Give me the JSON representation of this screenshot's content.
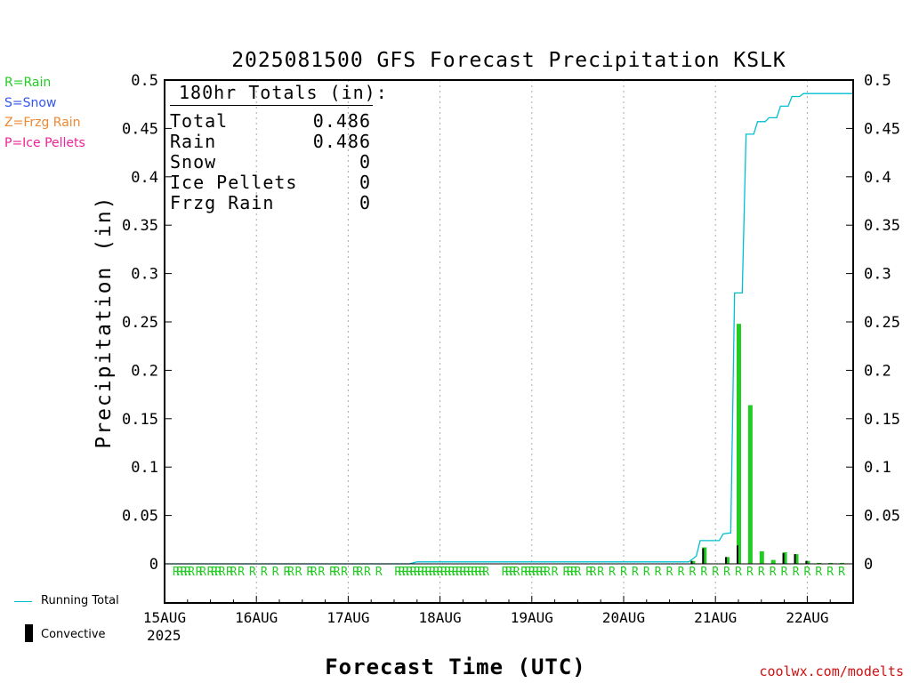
{
  "title": "2025081500 GFS Forecast Precipitation KSLK",
  "legend_types": [
    {
      "label": "R=Rain",
      "color": "#22cc22"
    },
    {
      "label": "S=Snow",
      "color": "#3355ee"
    },
    {
      "label": "Z=Frzg Rain",
      "color": "#ee8833"
    },
    {
      "label": "P=Ice Pellets",
      "color": "#ee2299"
    }
  ],
  "totals": {
    "header": "180hr Totals (in):",
    "rows": [
      {
        "label": "Total",
        "value": "0.486"
      },
      {
        "label": "Rain",
        "value": "0.486"
      },
      {
        "label": "Snow",
        "value": "0"
      },
      {
        "label": "Ice Pellets",
        "value": "0"
      },
      {
        "label": "Frzg Rain",
        "value": "0"
      }
    ]
  },
  "bottom_legend": {
    "running_total": "Running Total",
    "convective": "Convective"
  },
  "credit": "coolwx.com/modelts",
  "chart_data": {
    "type": "bar",
    "title": "2025081500 GFS Forecast Precipitation KSLK",
    "xlabel": "Forecast Time (UTC)",
    "ylabel": "Precipitation (in)",
    "xlim_hours": [
      0,
      180
    ],
    "ylim": [
      0,
      0.5
    ],
    "yticks": [
      0,
      0.05,
      0.1,
      0.15,
      0.2,
      0.25,
      0.3,
      0.35,
      0.4,
      0.45,
      0.5
    ],
    "ytick_labels": [
      "0",
      "0.05",
      "0.1",
      "0.15",
      "0.2",
      "0.25",
      "0.3",
      "0.35",
      "0.4",
      "0.45",
      "0.5"
    ],
    "xticks": [
      {
        "hour": 0,
        "label": "15AUG",
        "sublabel": "2025"
      },
      {
        "hour": 24,
        "label": "16AUG"
      },
      {
        "hour": 48,
        "label": "17AUG"
      },
      {
        "hour": 72,
        "label": "18AUG"
      },
      {
        "hour": 96,
        "label": "19AUG"
      },
      {
        "hour": 120,
        "label": "20AUG"
      },
      {
        "hour": 144,
        "label": "21AUG"
      },
      {
        "hour": 168,
        "label": "22AUG"
      }
    ],
    "grid": "vertical dotted at day boundaries",
    "colors": {
      "rain": "#22cc22",
      "convective": "#000000",
      "running_total": "#00bfd0"
    },
    "bars": [
      {
        "hour": 138,
        "total": 0.003,
        "convective": 0.003
      },
      {
        "hour": 141,
        "total": 0.017,
        "convective": 0.016
      },
      {
        "hour": 147,
        "total": 0.007,
        "convective": 0.007
      },
      {
        "hour": 150,
        "total": 0.248,
        "convective": 0.019
      },
      {
        "hour": 153,
        "total": 0.164,
        "convective": 0.0
      },
      {
        "hour": 156,
        "total": 0.013,
        "convective": 0.0
      },
      {
        "hour": 159,
        "total": 0.004,
        "convective": 0.0
      },
      {
        "hour": 162,
        "total": 0.012,
        "convective": 0.011
      },
      {
        "hour": 165,
        "total": 0.01,
        "convective": 0.01
      },
      {
        "hour": 168,
        "total": 0.003,
        "convective": 0.003
      },
      {
        "hour": 171,
        "total": 0.001,
        "convective": 0.0
      },
      {
        "hour": 174,
        "total": 0.001,
        "convective": 0.0
      },
      {
        "hour": 177,
        "total": 0.001,
        "convective": 0.0
      }
    ],
    "running_total": [
      [
        0,
        0
      ],
      [
        64,
        0
      ],
      [
        65,
        0.001
      ],
      [
        66,
        0.002
      ],
      [
        137,
        0.002
      ],
      [
        138,
        0.005
      ],
      [
        139,
        0.008
      ],
      [
        140,
        0.024
      ],
      [
        145,
        0.024
      ],
      [
        146,
        0.031
      ],
      [
        148,
        0.032
      ],
      [
        149,
        0.28
      ],
      [
        151,
        0.28
      ],
      [
        152,
        0.444
      ],
      [
        154,
        0.444
      ],
      [
        155,
        0.457
      ],
      [
        157,
        0.457
      ],
      [
        158,
        0.461
      ],
      [
        160,
        0.461
      ],
      [
        161,
        0.473
      ],
      [
        163,
        0.473
      ],
      [
        164,
        0.483
      ],
      [
        166,
        0.483
      ],
      [
        167,
        0.486
      ],
      [
        180,
        0.486
      ]
    ],
    "precip_type_marks": {
      "symbol": "R",
      "hours": [
        3,
        4,
        5,
        6,
        7,
        9,
        10,
        12,
        13,
        14,
        15,
        17,
        18,
        20,
        23,
        26,
        29,
        32,
        33,
        35,
        38,
        39,
        41,
        44,
        45,
        47,
        50,
        51,
        53,
        56,
        61,
        62,
        63,
        64,
        65,
        66,
        67,
        68,
        69,
        70,
        71,
        72,
        73,
        74,
        75,
        76,
        77,
        78,
        79,
        80,
        81,
        82,
        83,
        84,
        89,
        90,
        91,
        92,
        94,
        95,
        96,
        97,
        98,
        99,
        100,
        102,
        105,
        106,
        107,
        108,
        111,
        112,
        114,
        117,
        120,
        123,
        126,
        129,
        132,
        135,
        138,
        141,
        144,
        147,
        150,
        153,
        156,
        159,
        162,
        165,
        168,
        171,
        174,
        177
      ]
    }
  }
}
